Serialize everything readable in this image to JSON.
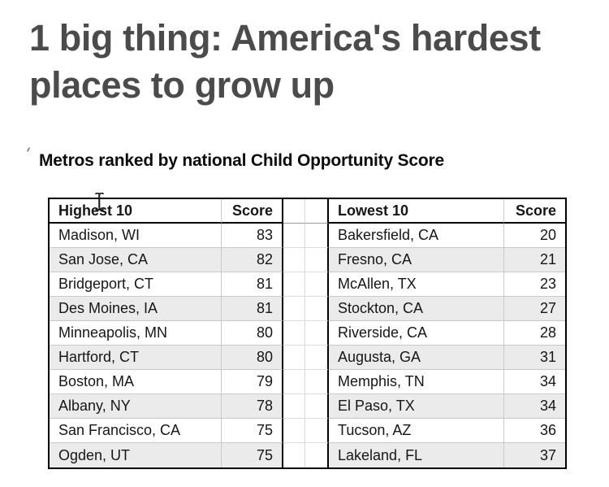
{
  "page": {
    "headline_line1": "1 big thing: America's hardest",
    "headline_line2": "places to grow up"
  },
  "table": {
    "title": "Metros ranked by national Child Opportunity Score",
    "headers": {
      "highest_label": "Highest 10",
      "highest_score_label": "Score",
      "lowest_label": "Lowest 10",
      "lowest_score_label": "Score"
    },
    "rows": [
      {
        "highest_metro": "Madison, WI",
        "highest_score": "83",
        "lowest_metro": "Bakersfield, CA",
        "lowest_score": "20"
      },
      {
        "highest_metro": "San Jose, CA",
        "highest_score": "82",
        "lowest_metro": "Fresno, CA",
        "lowest_score": "21"
      },
      {
        "highest_metro": "Bridgeport, CT",
        "highest_score": "81",
        "lowest_metro": "McAllen, TX",
        "lowest_score": "23"
      },
      {
        "highest_metro": "Des Moines, IA",
        "highest_score": "81",
        "lowest_metro": "Stockton, CA",
        "lowest_score": "27"
      },
      {
        "highest_metro": "Minneapolis, MN",
        "highest_score": "80",
        "lowest_metro": "Riverside, CA",
        "lowest_score": "28"
      },
      {
        "highest_metro": "Hartford, CT",
        "highest_score": "80",
        "lowest_metro": "Augusta, GA",
        "lowest_score": "31"
      },
      {
        "highest_metro": "Boston, MA",
        "highest_score": "79",
        "lowest_metro": "Memphis, TN",
        "lowest_score": "34"
      },
      {
        "highest_metro": "Albany, NY",
        "highest_score": "78",
        "lowest_metro": "El Paso, TX",
        "lowest_score": "34"
      },
      {
        "highest_metro": "San Francisco, CA",
        "highest_score": "75",
        "lowest_metro": "Tucson, AZ",
        "lowest_score": "36"
      },
      {
        "highest_metro": "Ogden, UT",
        "highest_score": "75",
        "lowest_metro": "Lakeland, FL",
        "lowest_score": "37"
      }
    ]
  },
  "icons": {
    "cursor": "i-beam-text-cursor",
    "tick": "stray-tick-mark"
  },
  "colors": {
    "headline_text": "#4b4b4b",
    "title_text": "#0c0c0c",
    "table_text": "#161616",
    "stripe": "#ebebeb",
    "gridline": "#c9c9c9",
    "border": "#000000",
    "background": "#ffffff"
  },
  "chart_data": {
    "type": "table",
    "title": "Metros ranked by national Child Opportunity Score",
    "columns": [
      "Highest 10",
      "Score",
      "Lowest 10",
      "Score"
    ],
    "highest_10": [
      {
        "metro": "Madison, WI",
        "score": 83
      },
      {
        "metro": "San Jose, CA",
        "score": 82
      },
      {
        "metro": "Bridgeport, CT",
        "score": 81
      },
      {
        "metro": "Des Moines, IA",
        "score": 81
      },
      {
        "metro": "Minneapolis, MN",
        "score": 80
      },
      {
        "metro": "Hartford, CT",
        "score": 80
      },
      {
        "metro": "Boston, MA",
        "score": 79
      },
      {
        "metro": "Albany, NY",
        "score": 78
      },
      {
        "metro": "San Francisco, CA",
        "score": 75
      },
      {
        "metro": "Ogden, UT",
        "score": 75
      }
    ],
    "lowest_10": [
      {
        "metro": "Bakersfield, CA",
        "score": 20
      },
      {
        "metro": "Fresno, CA",
        "score": 21
      },
      {
        "metro": "McAllen, TX",
        "score": 23
      },
      {
        "metro": "Stockton, CA",
        "score": 27
      },
      {
        "metro": "Riverside, CA",
        "score": 28
      },
      {
        "metro": "Augusta, GA",
        "score": 31
      },
      {
        "metro": "Memphis, TN",
        "score": 34
      },
      {
        "metro": "El Paso, TX",
        "score": 34
      },
      {
        "metro": "Tucson, AZ",
        "score": 36
      },
      {
        "metro": "Lakeland, FL",
        "score": 37
      }
    ]
  }
}
